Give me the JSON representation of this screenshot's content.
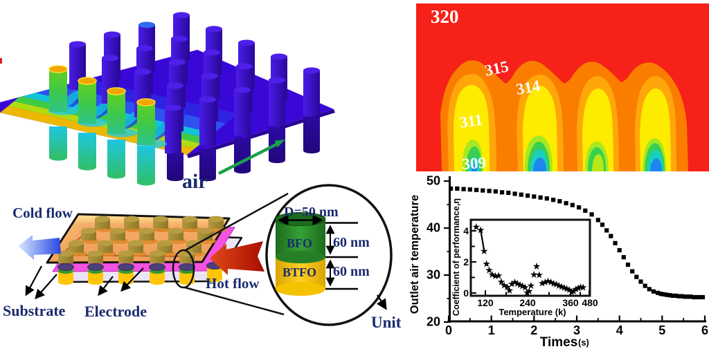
{
  "panels": {
    "sim": {
      "air": "air"
    },
    "contour": {
      "labels": [
        "320",
        "315",
        "314",
        "311",
        "309"
      ]
    },
    "schematic": {
      "cold_flow": "Cold flow",
      "hot_flow": "Hot flow",
      "substrate": "Substrate",
      "electrode": "Electrode",
      "unit": "Unit",
      "diameter": "D=50 nm",
      "bfo": "BFO",
      "btfo": "BTFO",
      "bfo_height": "60 nm",
      "btfo_height": "60 nm"
    },
    "chart": {
      "ylabel": "Outlet air temperature",
      "xlabel": "Times",
      "xlabel_unit": "(s)",
      "yticks": [
        "50",
        "40",
        "30",
        "20"
      ],
      "xticks": [
        "0",
        "1",
        "2",
        "3",
        "4",
        "5",
        "6"
      ],
      "inset": {
        "ylabel": "Coefficient of performance,η",
        "xlabel": "Temperature (k)",
        "yticks": [
          "4",
          "2",
          "0"
        ],
        "xticks": [
          "120",
          "240",
          "360",
          "480"
        ]
      }
    }
  },
  "colors": {
    "label_navy": "#1a2a6e",
    "plate_blue": "#3a08d6",
    "bfo_green": "#2e8b2e",
    "btfo_yellow": "#ffc813",
    "electrode_magenta": "#f452e0",
    "substrate_lavender": "#eae4f8",
    "air_green": "#157d15",
    "contour_label_low": "#99a05c"
  },
  "chart_data": [
    {
      "type": "heatmap",
      "description": "air temperature contour over nanopillar array",
      "range": [
        309,
        320
      ],
      "level_labels": [
        320,
        315,
        314,
        311,
        309
      ],
      "label_colors": [
        "#ffffff",
        "#ffffff",
        "#ffffff",
        "#ffffff",
        "#99a05c"
      ],
      "palette_high_to_low": [
        "#f62119",
        "#fa7d00",
        "#ffa60a",
        "#fdec00",
        "#a6e821",
        "#38cf52",
        "#19cfc0",
        "#1f86f0"
      ]
    },
    {
      "type": "scatter",
      "marker": "square",
      "xlabel": "Times (s)",
      "ylabel": "Outlet air temperature",
      "xlim": [
        0,
        6
      ],
      "ylim": [
        20,
        50
      ],
      "x": [
        0.05,
        0.2,
        0.35,
        0.5,
        0.65,
        0.8,
        0.95,
        1.1,
        1.25,
        1.4,
        1.55,
        1.7,
        1.85,
        2.0,
        2.15,
        2.3,
        2.45,
        2.6,
        2.75,
        2.9,
        3.05,
        3.2,
        3.35,
        3.5,
        3.6,
        3.7,
        3.8,
        3.9,
        4.0,
        4.1,
        4.2,
        4.3,
        4.4,
        4.5,
        4.6,
        4.7,
        4.8,
        4.9,
        4.97,
        5.04,
        5.11,
        5.18,
        5.25,
        5.32,
        5.39,
        5.46,
        5.53,
        5.6,
        5.67,
        5.74,
        5.81,
        5.88,
        5.95
      ],
      "y": [
        48.4,
        48.4,
        48.3,
        48.2,
        48.1,
        48.0,
        47.9,
        47.8,
        47.6,
        47.5,
        47.3,
        47.1,
        46.9,
        46.7,
        46.5,
        46.3,
        46.0,
        45.7,
        45.3,
        44.9,
        44.4,
        43.7,
        42.9,
        41.7,
        40.7,
        39.5,
        38.3,
        36.8,
        35.3,
        33.8,
        32.2,
        30.8,
        29.6,
        28.6,
        27.7,
        27.0,
        26.5,
        26.2,
        26.0,
        25.9,
        25.8,
        25.7,
        25.6,
        25.6,
        25.5,
        25.5,
        25.4,
        25.4,
        25.4,
        25.3,
        25.3,
        25.3,
        25.3
      ]
    },
    {
      "type": "scatter",
      "marker": "star",
      "xlabel": "Temperature (k)",
      "ylabel": "Coefficient of performance,η",
      "xlim": [
        70,
        480
      ],
      "ylim": [
        0,
        4.6
      ],
      "x": [
        89,
        104,
        116,
        124,
        133,
        143,
        154,
        165,
        174,
        184,
        194,
        202,
        210,
        220,
        229,
        238,
        246,
        255,
        262,
        269,
        275,
        285,
        294,
        303,
        313,
        323,
        333,
        343,
        352,
        361,
        370,
        379,
        388,
        397,
        405,
        413,
        420,
        428,
        436,
        444,
        452
      ],
      "y": [
        4.25,
        4.06,
        2.7,
        1.88,
        1.48,
        1.19,
        1.11,
        1.12,
        0.72,
        0.5,
        0.39,
        0.18,
        0.59,
        0.71,
        0.61,
        0.53,
        0.46,
        0.37,
        0.04,
        0.12,
        0.48,
        1.2,
        1.72,
        1.16,
        0.64,
        0.71,
        0.77,
        0.7,
        0.62,
        0.56,
        0.49,
        0.41,
        0.34,
        0.28,
        0.21,
        0.07,
        0.13,
        0.25,
        0.32,
        0.39,
        0.36
      ]
    }
  ]
}
